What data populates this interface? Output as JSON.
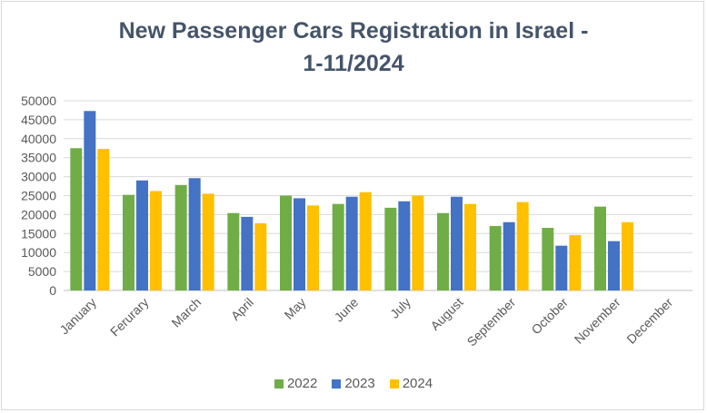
{
  "title_line1": "New Passenger Cars Registration in Israel -",
  "title_line2": "1-11/2024",
  "colors": {
    "2022": "#70ad47",
    "2023": "#4472c4",
    "2024": "#ffc000"
  },
  "chart_data": {
    "type": "bar",
    "title": "New Passenger Cars Registration in Israel - 1-11/2024",
    "categories": [
      "January",
      "Ferurary",
      "March",
      "April",
      "May",
      "June",
      "July",
      "August",
      "September",
      "October",
      "November",
      "December"
    ],
    "series": [
      {
        "name": "2022",
        "values": [
          37500,
          25200,
          27800,
          20400,
          25000,
          22800,
          21800,
          20400,
          17000,
          16500,
          22100,
          null
        ]
      },
      {
        "name": "2023",
        "values": [
          47300,
          29000,
          29600,
          19400,
          24300,
          24700,
          23500,
          24700,
          18000,
          11800,
          13000,
          null
        ]
      },
      {
        "name": "2024",
        "values": [
          37300,
          26200,
          25500,
          17700,
          22400,
          25900,
          25000,
          22800,
          23300,
          14600,
          18000,
          null
        ]
      }
    ],
    "yticks": [
      "0",
      "5000",
      "10000",
      "15000",
      "20000",
      "25000",
      "30000",
      "35000",
      "40000",
      "45000",
      "50000"
    ],
    "ylim": [
      0,
      50000
    ],
    "grid": true,
    "legend": "bottom"
  }
}
